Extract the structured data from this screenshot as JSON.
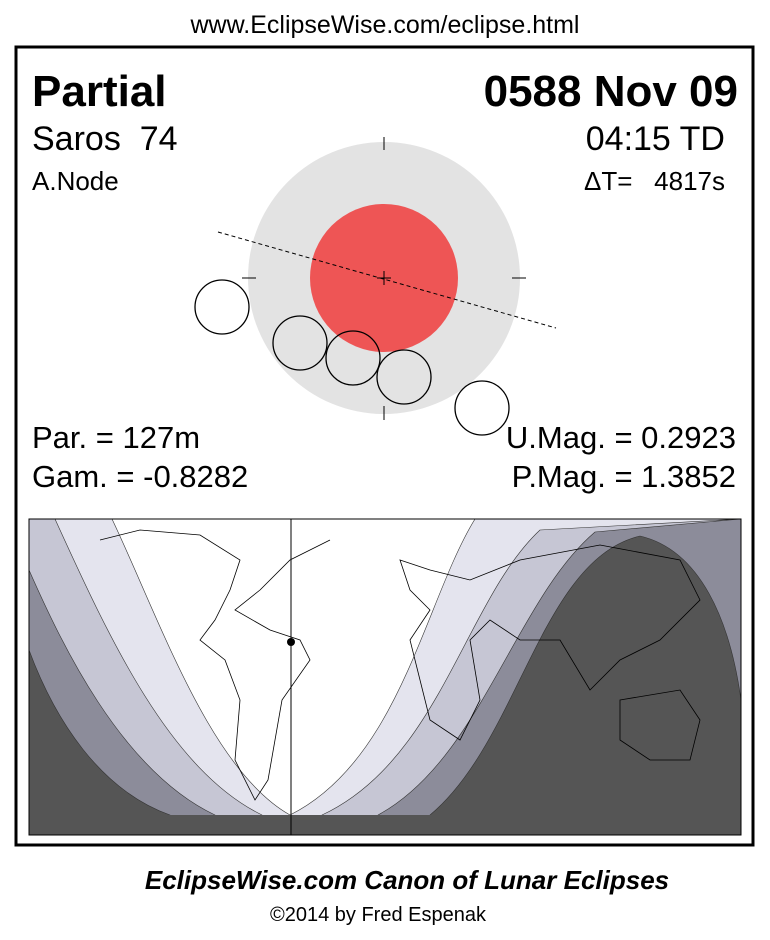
{
  "header": {
    "url": "www.EclipseWise.com/eclipse.html"
  },
  "eclipse": {
    "type": "Partial",
    "date": "0588 Nov 09",
    "saros": "Saros  74",
    "time": "04:15 TD",
    "node": "A.Node",
    "delta_t": "ΔT=   4817s",
    "par": "Par. = 127m",
    "umag": "U.Mag. = 0.2923",
    "gam": "Gam. = -0.8282",
    "pmag": "P.Mag. = 1.3852"
  },
  "footer": {
    "title": "EclipseWise.com Canon of Lunar Eclipses",
    "credit": "©2014 by Fred Espenak"
  }
}
